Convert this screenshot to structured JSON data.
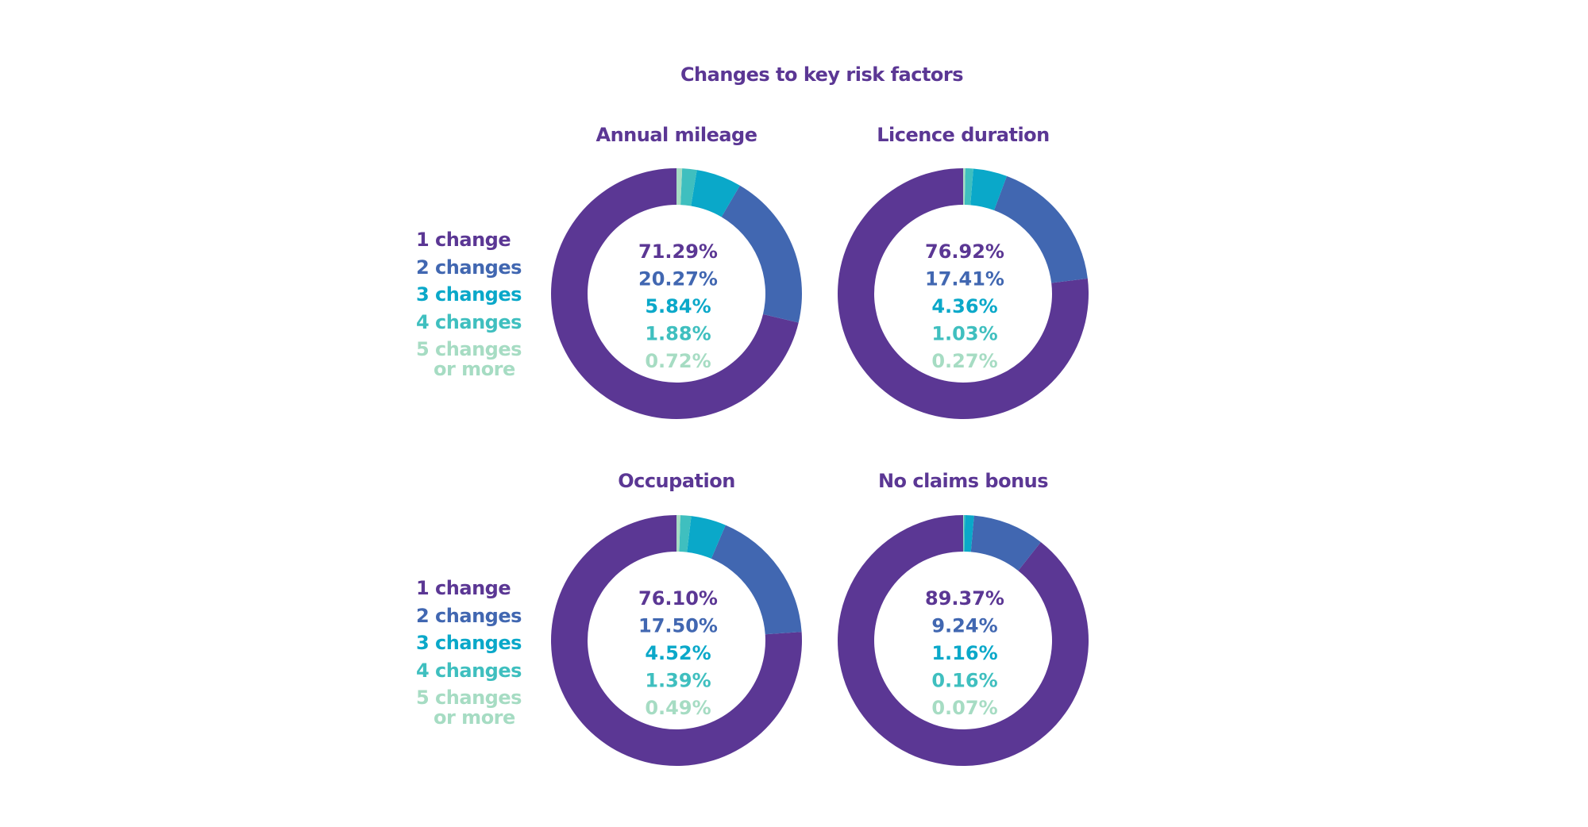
{
  "chart_data": {
    "type": "pie",
    "title": "Changes to key risk factors",
    "categories": [
      "1 change",
      "2 changes",
      "3 changes",
      "4 changes",
      "5 changes or more"
    ],
    "colors": [
      "#5b3794",
      "#4167b1",
      "#0aa8c9",
      "#3fbfbf",
      "#a6dcc3"
    ],
    "charts": [
      {
        "title": "Annual mileage",
        "values": [
          71.29,
          20.27,
          5.84,
          1.88,
          0.72
        ],
        "labels": [
          "71.29%",
          "20.27%",
          "5.84%",
          "1.88%",
          "0.72%"
        ]
      },
      {
        "title": "Licence duration",
        "values": [
          76.92,
          17.41,
          4.36,
          1.03,
          0.27
        ],
        "labels": [
          "76.92%",
          "17.41%",
          "4.36%",
          "1.03%",
          "0.27%"
        ]
      },
      {
        "title": "Occupation",
        "values": [
          76.1,
          17.5,
          4.52,
          1.39,
          0.49
        ],
        "labels": [
          "76.10%",
          "17.50%",
          "4.52%",
          "1.39%",
          "0.49%"
        ]
      },
      {
        "title": "No claims bonus",
        "values": [
          89.37,
          9.24,
          1.16,
          0.16,
          0.07
        ],
        "labels": [
          "89.37%",
          "9.24%",
          "1.16%",
          "0.16%",
          "0.07%"
        ]
      }
    ],
    "legend": {
      "items": [
        "1 change",
        "2 changes",
        "3 changes",
        "4 changes"
      ],
      "last_line1": "5 changes",
      "last_line2": "or more"
    }
  }
}
